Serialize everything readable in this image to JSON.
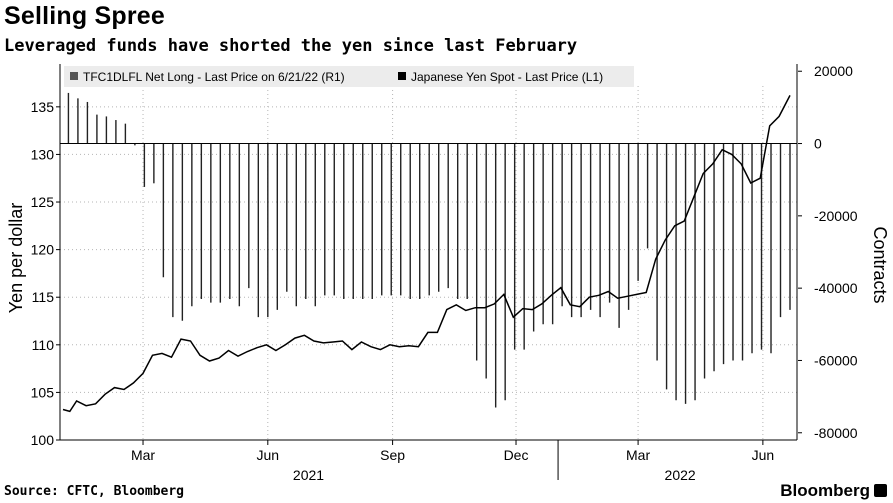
{
  "title": "Selling Spree",
  "subtitle": "Leveraged funds have shorted the yen since last February",
  "source": "Source: CFTC, Bloomberg",
  "brand": "Bloomberg",
  "chart_data": {
    "type": "bar+line",
    "legend": [
      {
        "label": "TFC1DLFL Net Long - Last Price on 6/21/22 (R1)",
        "color": "#555555"
      },
      {
        "label": "Japanese Yen Spot - Last Price (L1)",
        "color": "#000000"
      }
    ],
    "left_axis": {
      "label": "Yen per dollar",
      "ticks": [
        100,
        105,
        110,
        115,
        120,
        125,
        130,
        135
      ],
      "range": [
        100,
        139.5
      ]
    },
    "right_axis": {
      "label": "Contracts",
      "ticks": [
        20000,
        0,
        -20000,
        -40000,
        -60000,
        -80000
      ],
      "range": [
        -82000,
        22000
      ]
    },
    "x_ticks": [
      {
        "date": "2021-03-01",
        "label": "Mar"
      },
      {
        "date": "2021-06-01",
        "label": "Jun"
      },
      {
        "date": "2021-09-01",
        "label": "Sep"
      },
      {
        "date": "2021-12-01",
        "label": "Dec"
      },
      {
        "date": "2022-03-01",
        "label": "Mar"
      },
      {
        "date": "2022-06-01",
        "label": "Jun"
      }
    ],
    "year_labels": [
      {
        "date": "2021-07-01",
        "label": "2021"
      },
      {
        "date": "2022-04-01",
        "label": "2022"
      }
    ],
    "date_range": [
      "2021-01-01",
      "2022-06-21"
    ],
    "series": [
      {
        "name": "TFC1DLFL Net Long - Last Price on 6/21/22 (R1)",
        "type": "bar",
        "dates": [
          "2021-01-05",
          "2021-01-12",
          "2021-01-19",
          "2021-01-26",
          "2021-02-02",
          "2021-02-09",
          "2021-02-16",
          "2021-02-23",
          "2021-03-02",
          "2021-03-09",
          "2021-03-16",
          "2021-03-23",
          "2021-03-30",
          "2021-04-06",
          "2021-04-13",
          "2021-04-20",
          "2021-04-27",
          "2021-05-04",
          "2021-05-11",
          "2021-05-18",
          "2021-05-25",
          "2021-06-01",
          "2021-06-08",
          "2021-06-15",
          "2021-06-22",
          "2021-06-29",
          "2021-07-06",
          "2021-07-13",
          "2021-07-20",
          "2021-07-27",
          "2021-08-03",
          "2021-08-10",
          "2021-08-17",
          "2021-08-24",
          "2021-08-31",
          "2021-09-07",
          "2021-09-14",
          "2021-09-21",
          "2021-09-28",
          "2021-10-05",
          "2021-10-12",
          "2021-10-19",
          "2021-10-26",
          "2021-11-02",
          "2021-11-09",
          "2021-11-16",
          "2021-11-23",
          "2021-11-30",
          "2021-12-07",
          "2021-12-14",
          "2021-12-21",
          "2021-12-28",
          "2022-01-04",
          "2022-01-11",
          "2022-01-18",
          "2022-01-25",
          "2022-02-01",
          "2022-02-08",
          "2022-02-15",
          "2022-02-22",
          "2022-03-01",
          "2022-03-08",
          "2022-03-15",
          "2022-03-22",
          "2022-03-29",
          "2022-04-05",
          "2022-04-12",
          "2022-04-19",
          "2022-04-26",
          "2022-05-03",
          "2022-05-10",
          "2022-05-17",
          "2022-05-24",
          "2022-05-31",
          "2022-06-07",
          "2022-06-14",
          "2022-06-21"
        ],
        "values": [
          14000,
          12500,
          11500,
          8000,
          7500,
          6500,
          5500,
          -500,
          -12000,
          -11000,
          -37000,
          -48000,
          -49000,
          -45000,
          -43000,
          -44000,
          -44000,
          -43000,
          -45000,
          -40000,
          -48000,
          -48000,
          -46000,
          -41000,
          -45000,
          -43000,
          -45000,
          -42000,
          -42000,
          -43000,
          -43000,
          -43000,
          -43000,
          -42000,
          -42000,
          -42000,
          -43000,
          -43000,
          -42000,
          -41000,
          -40000,
          -43000,
          -43000,
          -60000,
          -65000,
          -73000,
          -71000,
          -57000,
          -57000,
          -52000,
          -50000,
          -50000,
          -45000,
          -48000,
          -48000,
          -46000,
          -48000,
          -44000,
          -51000,
          -46000,
          -38000,
          -29000,
          -60000,
          -68000,
          -71000,
          -72000,
          -71000,
          -65000,
          -63000,
          -61000,
          -60000,
          -60000,
          -58000,
          -57000,
          -58000,
          -48000,
          -46000
        ]
      },
      {
        "name": "Japanese Yen Spot - Last Price (L1)",
        "type": "line",
        "dates": [
          "2021-01-01",
          "2021-01-06",
          "2021-01-11",
          "2021-01-18",
          "2021-01-25",
          "2021-02-01",
          "2021-02-08",
          "2021-02-15",
          "2021-02-22",
          "2021-03-01",
          "2021-03-08",
          "2021-03-15",
          "2021-03-22",
          "2021-03-29",
          "2021-04-05",
          "2021-04-12",
          "2021-04-19",
          "2021-04-26",
          "2021-05-03",
          "2021-05-10",
          "2021-05-17",
          "2021-05-24",
          "2021-05-31",
          "2021-06-07",
          "2021-06-14",
          "2021-06-21",
          "2021-06-28",
          "2021-07-05",
          "2021-07-12",
          "2021-07-19",
          "2021-07-26",
          "2021-08-02",
          "2021-08-09",
          "2021-08-16",
          "2021-08-23",
          "2021-08-30",
          "2021-09-06",
          "2021-09-13",
          "2021-09-20",
          "2021-09-27",
          "2021-10-04",
          "2021-10-11",
          "2021-10-18",
          "2021-10-25",
          "2021-11-01",
          "2021-11-08",
          "2021-11-15",
          "2021-11-22",
          "2021-11-29",
          "2021-12-06",
          "2021-12-13",
          "2021-12-20",
          "2021-12-27",
          "2022-01-03",
          "2022-01-10",
          "2022-01-17",
          "2022-01-24",
          "2022-01-31",
          "2022-02-07",
          "2022-02-14",
          "2022-02-21",
          "2022-02-28",
          "2022-03-07",
          "2022-03-14",
          "2022-03-21",
          "2022-03-28",
          "2022-04-04",
          "2022-04-11",
          "2022-04-18",
          "2022-04-25",
          "2022-05-02",
          "2022-05-09",
          "2022-05-16",
          "2022-05-23",
          "2022-05-30",
          "2022-06-06",
          "2022-06-13",
          "2022-06-21"
        ],
        "values": [
          103.2,
          103.0,
          104.1,
          103.6,
          103.8,
          104.8,
          105.5,
          105.3,
          106.0,
          107.0,
          108.9,
          109.1,
          108.7,
          110.6,
          110.4,
          108.9,
          108.3,
          108.6,
          109.4,
          108.8,
          109.3,
          109.7,
          110.0,
          109.4,
          110.0,
          110.7,
          111.0,
          110.4,
          110.2,
          110.3,
          110.4,
          109.5,
          110.3,
          109.8,
          109.5,
          110.0,
          109.8,
          109.9,
          109.8,
          111.3,
          111.3,
          113.7,
          114.2,
          113.6,
          113.9,
          113.9,
          114.3,
          115.3,
          112.9,
          113.8,
          113.7,
          114.3,
          115.2,
          116.0,
          114.2,
          114.0,
          115.0,
          115.2,
          115.6,
          114.9,
          115.1,
          115.3,
          115.5,
          119.0,
          121.0,
          122.5,
          123.0,
          125.5,
          128.0,
          129.0,
          130.5,
          130.0,
          129.0,
          127.0,
          127.5,
          133.0,
          134.0,
          136.2
        ]
      }
    ]
  }
}
